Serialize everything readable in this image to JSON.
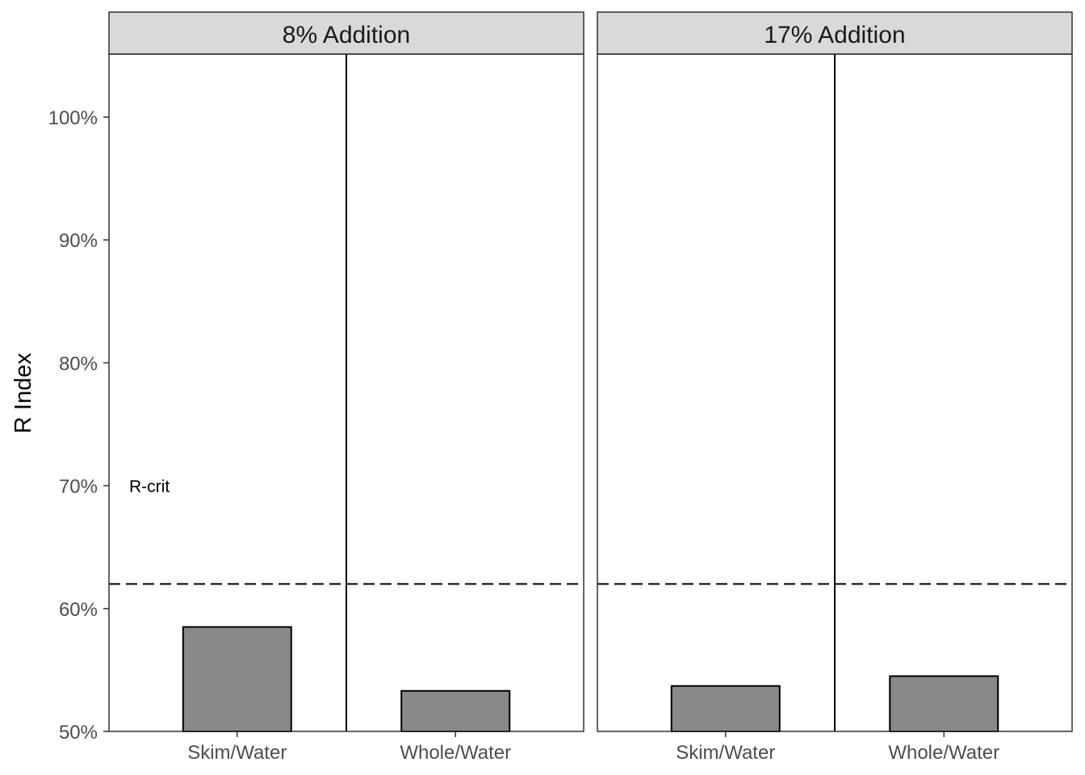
{
  "chart_data": {
    "type": "bar",
    "ylabel": "R Index",
    "ylim": [
      50,
      105
    ],
    "yticks": [
      50,
      60,
      70,
      80,
      90,
      100
    ],
    "ytick_labels": [
      "50%",
      "60%",
      "70%",
      "80%",
      "90%",
      "100%"
    ],
    "categories": [
      "Skim/Water",
      "Whole/Water"
    ],
    "reference_line": {
      "value": 62,
      "style": "dashed",
      "label": "R-crit",
      "label_value": 70
    },
    "panels": [
      {
        "title": "8% Addition",
        "values": [
          58.5,
          53.3
        ]
      },
      {
        "title": "17% Addition",
        "values": [
          53.7,
          54.5
        ]
      }
    ],
    "bar_color": "#898989",
    "bar_stroke": "#000000",
    "strip_color": "#d9d9d9",
    "grid": false
  }
}
